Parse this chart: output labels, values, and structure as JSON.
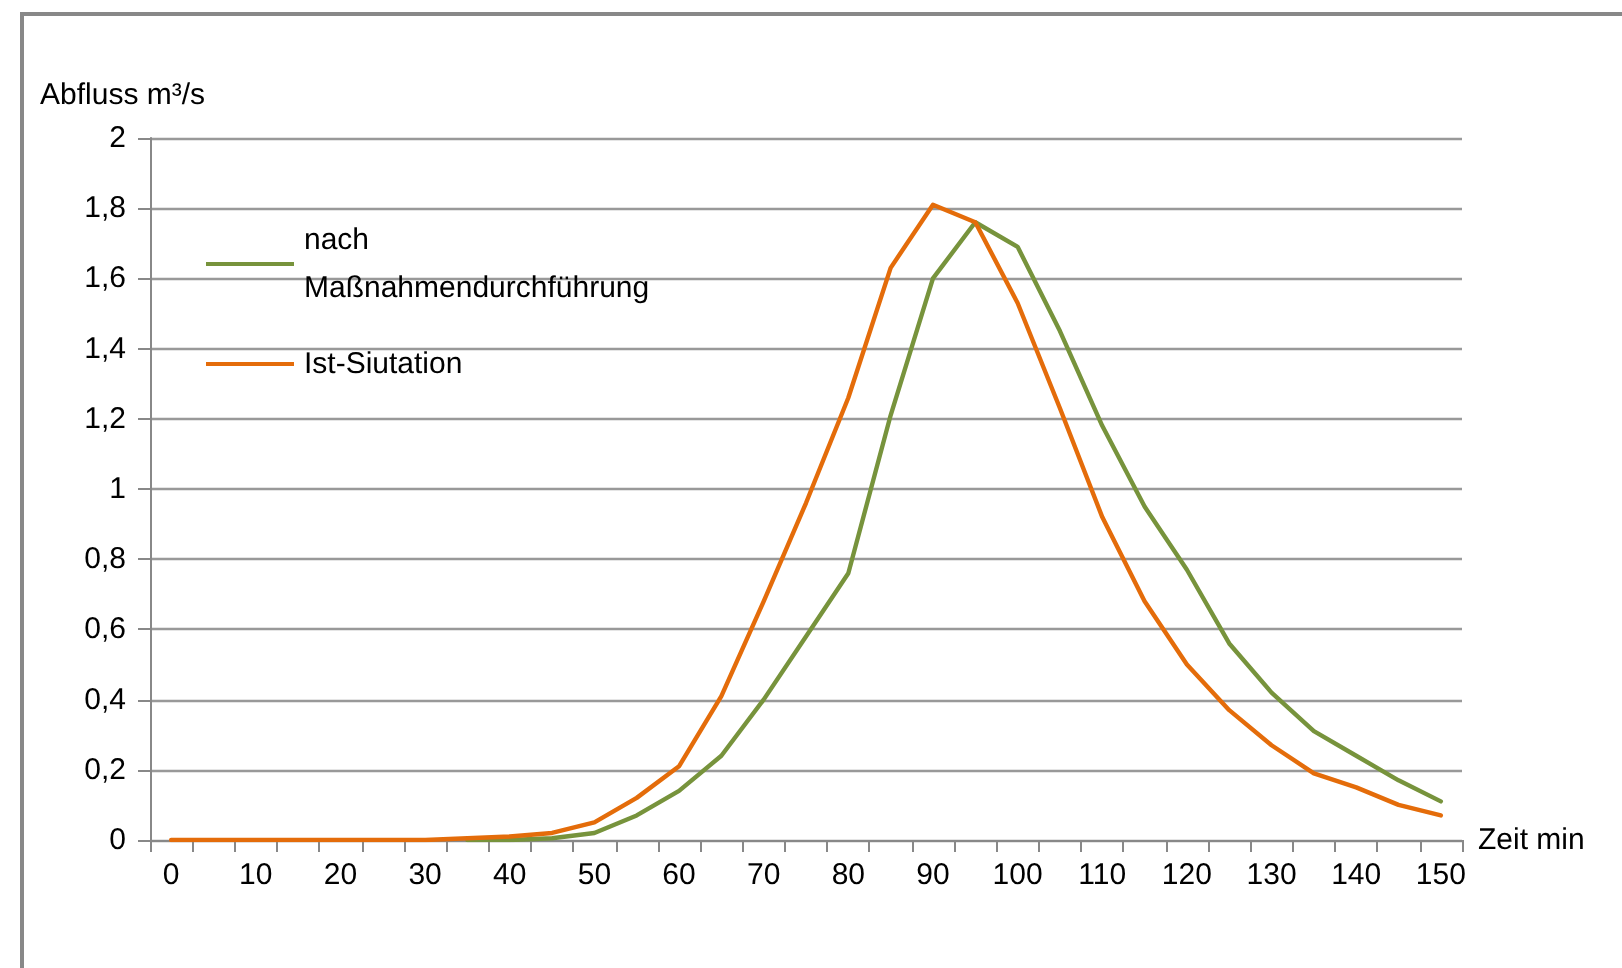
{
  "chart_data": {
    "type": "line",
    "xlabel": "Zeit min",
    "ylabel": "Abfluss m³/s",
    "categories": [
      "0",
      null,
      "10",
      null,
      "20",
      null,
      "30",
      null,
      "40",
      null,
      "50",
      null,
      "60",
      null,
      "70",
      null,
      "80",
      null,
      "90",
      null,
      "100",
      null,
      "110",
      null,
      "120",
      null,
      "130",
      null,
      "140",
      null,
      "150"
    ],
    "series": [
      {
        "name": "nach Maßnahmendurchführung",
        "color": "#77933c",
        "values": [
          null,
          null,
          null,
          null,
          null,
          null,
          null,
          0,
          0,
          0.005,
          0.02,
          0.07,
          0.14,
          0.24,
          0.4,
          0.58,
          0.76,
          1.21,
          1.6,
          1.76,
          1.69,
          1.45,
          1.18,
          0.95,
          0.77,
          0.56,
          0.42,
          0.31,
          0.24,
          0.17,
          0.11
        ]
      },
      {
        "name": "Ist-Siutation",
        "color": "#e46c0a",
        "values": [
          0,
          0,
          0,
          0,
          0,
          0,
          0,
          0.005,
          0.01,
          0.02,
          0.05,
          0.12,
          0.21,
          0.41,
          0.68,
          0.96,
          1.26,
          1.63,
          1.81,
          1.76,
          1.53,
          1.23,
          0.92,
          0.68,
          0.5,
          0.37,
          0.27,
          0.19,
          0.15,
          0.1,
          0.07
        ]
      }
    ],
    "ylim": [
      0,
      2
    ],
    "yticks": [
      0,
      {
        "value": 0.2,
        "label": "0,2"
      },
      {
        "value": 0.4,
        "label": "0,4"
      },
      {
        "value": 0.6,
        "label": "0,6"
      },
      {
        "value": 0.8,
        "label": "0,8"
      },
      1,
      {
        "value": 1.2,
        "label": "1,2"
      },
      {
        "value": 1.4,
        "label": "1,4"
      },
      {
        "value": 1.6,
        "label": "1,6"
      },
      {
        "value": 1.8,
        "label": "1,8"
      },
      2
    ],
    "grid": "y",
    "legend": "top left",
    "marker": "none",
    "line_style": "solid"
  }
}
